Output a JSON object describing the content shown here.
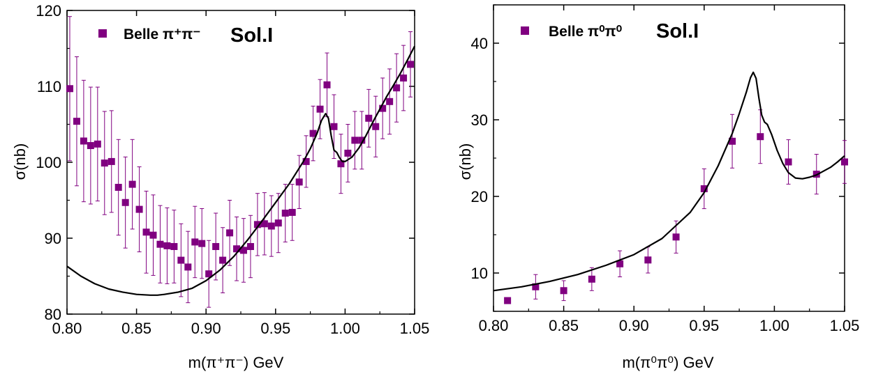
{
  "colors": {
    "marker": "#800080",
    "curve": "#000000",
    "axes": "#000000"
  },
  "chart_data": [
    {
      "type": "scatter",
      "xlabel": "m(π⁺π⁻) GeV",
      "ylabel": "σ(nb)",
      "xlim": [
        0.8,
        1.05
      ],
      "ylim": [
        80,
        120
      ],
      "xticks": [
        "0.80",
        "0.85",
        "0.90",
        "0.95",
        "1.00",
        "1.05"
      ],
      "yticks": [
        "80",
        "90",
        "100",
        "110",
        "120"
      ],
      "legend": {
        "marker": "square",
        "label": "Belle π⁺π⁻",
        "placement": "top-left"
      },
      "annotation": "Sol.I",
      "series": [
        {
          "name": "Belle π⁺π⁻",
          "kind": "points",
          "x": [
            0.802,
            0.807,
            0.812,
            0.817,
            0.822,
            0.827,
            0.832,
            0.837,
            0.842,
            0.847,
            0.852,
            0.857,
            0.862,
            0.867,
            0.872,
            0.877,
            0.882,
            0.887,
            0.892,
            0.897,
            0.902,
            0.907,
            0.912,
            0.917,
            0.922,
            0.927,
            0.932,
            0.937,
            0.942,
            0.947,
            0.952,
            0.957,
            0.962,
            0.967,
            0.972,
            0.977,
            0.982,
            0.987,
            0.992,
            0.997,
            1.002,
            1.007,
            1.012,
            1.017,
            1.022,
            1.027,
            1.032,
            1.037,
            1.042,
            1.047
          ],
          "y": [
            109.7,
            105.4,
            102.8,
            102.2,
            102.4,
            99.9,
            100.1,
            96.7,
            94.7,
            97.1,
            93.8,
            90.8,
            90.4,
            89.2,
            89.0,
            88.9,
            87.1,
            86.2,
            89.5,
            89.3,
            85.3,
            88.9,
            87.1,
            90.7,
            88.6,
            88.4,
            88.9,
            91.8,
            91.9,
            91.6,
            92.0,
            93.3,
            93.4,
            97.4,
            100.1,
            103.8,
            107.0,
            110.2,
            104.7,
            99.8,
            101.2,
            102.9,
            102.9,
            105.8,
            104.7,
            107.1,
            108.0,
            109.8,
            111.1,
            112.9
          ],
          "err": [
            9.5,
            8.5,
            8.0,
            7.7,
            7.5,
            6.8,
            6.7,
            6.3,
            6.0,
            5.9,
            5.6,
            5.4,
            5.3,
            5.1,
            5.0,
            4.8,
            4.8,
            4.7,
            4.7,
            4.6,
            4.4,
            4.4,
            4.3,
            4.3,
            4.2,
            4.2,
            4.1,
            4.1,
            4.1,
            4.0,
            3.9,
            3.8,
            3.7,
            3.5,
            3.4,
            3.6,
            3.9,
            4.2,
            4.2,
            3.9,
            3.8,
            3.8,
            3.8,
            3.8,
            4.0,
            4.0,
            4.3,
            4.5,
            4.3,
            4.3
          ]
        },
        {
          "name": "Sol.I",
          "kind": "curve",
          "x": [
            0.8,
            0.81,
            0.82,
            0.83,
            0.84,
            0.85,
            0.86,
            0.865,
            0.87,
            0.88,
            0.89,
            0.9,
            0.91,
            0.92,
            0.93,
            0.94,
            0.95,
            0.96,
            0.97,
            0.975,
            0.98,
            0.983,
            0.986,
            0.988,
            0.99,
            0.992,
            0.994,
            0.996,
            0.998,
            1.0,
            1.005,
            1.01,
            1.015,
            1.02,
            1.025,
            1.03,
            1.035,
            1.04,
            1.045,
            1.05
          ],
          "y": [
            86.3,
            85.0,
            84.0,
            83.3,
            82.9,
            82.6,
            82.5,
            82.5,
            82.6,
            82.9,
            83.4,
            84.4,
            85.8,
            87.6,
            89.8,
            92.2,
            94.7,
            97.2,
            100.1,
            101.8,
            103.9,
            105.5,
            106.4,
            105.8,
            103.5,
            101.6,
            101.3,
            100.6,
            100.1,
            100.1,
            100.7,
            101.9,
            103.5,
            105.3,
            107.0,
            108.7,
            110.2,
            111.8,
            113.5,
            115.3
          ]
        }
      ]
    },
    {
      "type": "scatter",
      "xlabel": "m(π⁰π⁰) GeV",
      "ylabel": "σ(nb)",
      "xlim": [
        0.8,
        1.05
      ],
      "ylim": [
        5,
        45
      ],
      "xticks": [
        "0.80",
        "0.85",
        "0.90",
        "0.95",
        "1.00",
        "1.05"
      ],
      "yticks": [
        "10",
        "20",
        "30",
        "40"
      ],
      "ytick_values": [
        10,
        20,
        30,
        40
      ],
      "legend": {
        "marker": "square",
        "label": "Belle π⁰π⁰",
        "placement": "top-left"
      },
      "annotation": "Sol.I",
      "series": [
        {
          "name": "Belle π⁰π⁰",
          "kind": "points",
          "x": [
            0.81,
            0.83,
            0.85,
            0.87,
            0.89,
            0.91,
            0.93,
            0.95,
            0.97,
            0.99,
            1.01,
            1.03,
            1.05
          ],
          "y": [
            6.4,
            8.2,
            7.7,
            9.2,
            11.2,
            11.7,
            14.7,
            21.0,
            27.2,
            27.8,
            24.5,
            22.9,
            24.5
          ],
          "err": [
            0.0,
            1.6,
            1.3,
            1.5,
            1.7,
            1.7,
            2.1,
            2.6,
            3.5,
            3.5,
            2.9,
            2.6,
            2.8
          ]
        },
        {
          "name": "Sol.I",
          "kind": "curve",
          "x": [
            0.8,
            0.82,
            0.84,
            0.86,
            0.88,
            0.9,
            0.92,
            0.94,
            0.95,
            0.96,
            0.97,
            0.975,
            0.98,
            0.983,
            0.985,
            0.987,
            0.989,
            0.991,
            0.993,
            0.995,
            0.998,
            1.002,
            1.006,
            1.01,
            1.015,
            1.02,
            1.025,
            1.03,
            1.035,
            1.04,
            1.045,
            1.05
          ],
          "y": [
            7.7,
            8.2,
            8.9,
            9.8,
            11.0,
            12.4,
            14.5,
            17.9,
            20.5,
            24.0,
            28.2,
            30.8,
            33.6,
            35.5,
            36.2,
            35.4,
            32.8,
            30.6,
            29.7,
            29.4,
            28.1,
            26.0,
            24.3,
            23.1,
            22.4,
            22.3,
            22.5,
            22.8,
            23.3,
            23.8,
            24.5,
            25.3
          ]
        }
      ]
    }
  ]
}
